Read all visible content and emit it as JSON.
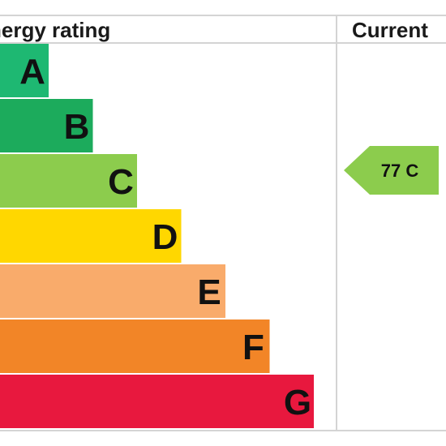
{
  "header": {
    "rating_label": "nergy rating",
    "current_label": "Current"
  },
  "chart_data": {
    "type": "bar",
    "categories": [
      "A",
      "B",
      "C",
      "D",
      "E",
      "F",
      "G"
    ],
    "band_colors": [
      "#1eb872",
      "#1cab5c",
      "#8ccc4d",
      "#ffd700",
      "#f9ab6b",
      "#f28527",
      "#e8183e"
    ],
    "current": {
      "value": 77,
      "band": "C",
      "label": "77 C",
      "color": "#8ccc4d"
    }
  }
}
